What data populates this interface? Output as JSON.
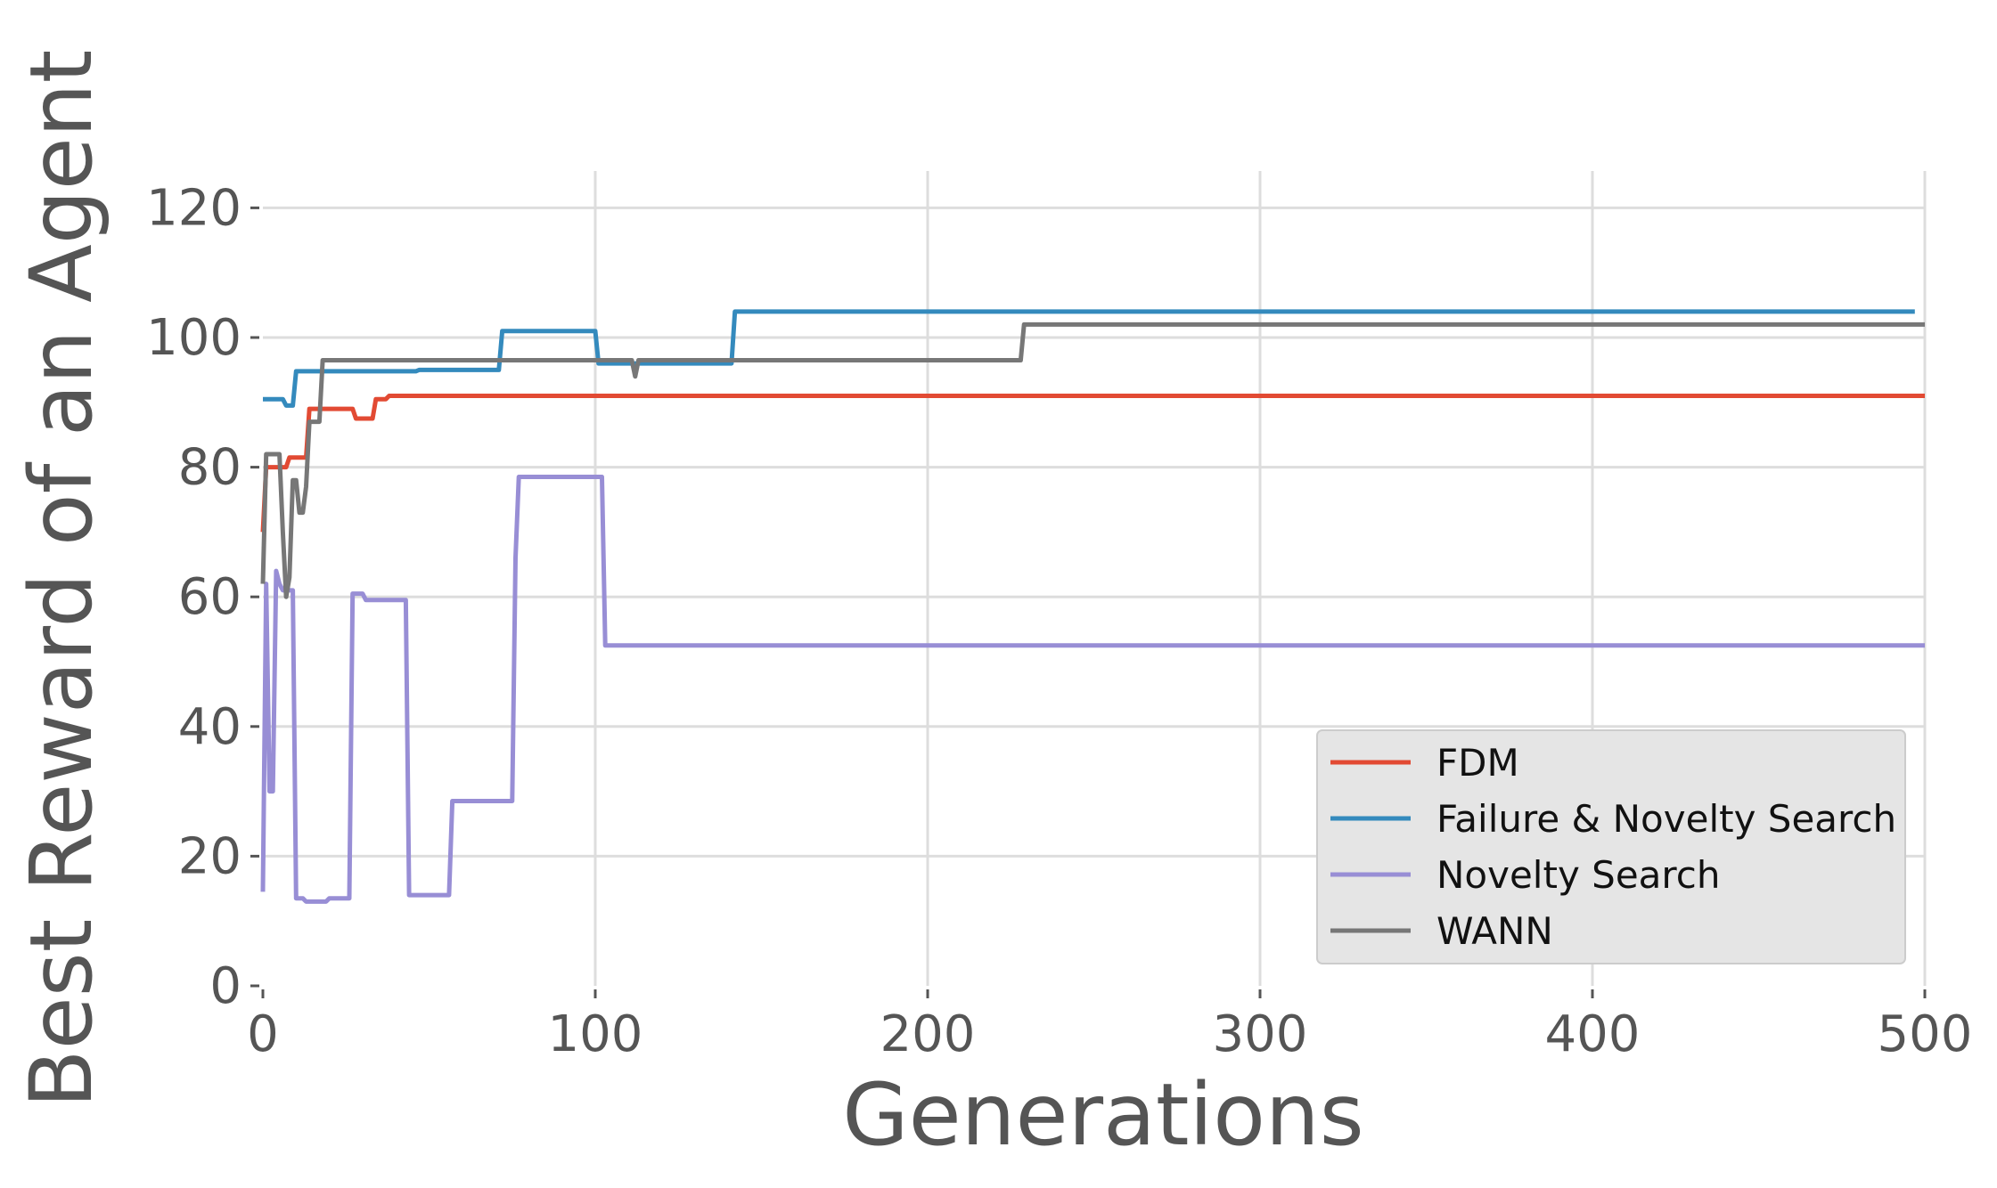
{
  "chart_data": {
    "type": "line",
    "xlabel": "Generations",
    "ylabel": "Best Reward of an Agent",
    "xlim": [
      0,
      500
    ],
    "ylim": [
      0,
      125
    ],
    "xticks": [
      "0",
      "100",
      "200",
      "300",
      "400",
      "500"
    ],
    "yticks": [
      "0",
      "20",
      "40",
      "60",
      "80",
      "100",
      "120"
    ],
    "grid": true,
    "legend_position": "bottom-right",
    "series": [
      {
        "name": "FDM",
        "color": "#E24A33",
        "points": [
          [
            0,
            70
          ],
          [
            1,
            80
          ],
          [
            7,
            80
          ],
          [
            8,
            81.5
          ],
          [
            13,
            81.5
          ],
          [
            14,
            89
          ],
          [
            27,
            89
          ],
          [
            28,
            87.5
          ],
          [
            33,
            87.5
          ],
          [
            34,
            90.5
          ],
          [
            37,
            90.5
          ],
          [
            38,
            91
          ],
          [
            500,
            91
          ]
        ]
      },
      {
        "name": "Failure & Novelty Search",
        "color": "#348ABD",
        "points": [
          [
            0,
            90.5
          ],
          [
            6,
            90.5
          ],
          [
            7,
            89.5
          ],
          [
            9,
            89.5
          ],
          [
            10,
            94.8
          ],
          [
            46,
            94.8
          ],
          [
            47,
            95
          ],
          [
            71,
            95
          ],
          [
            72,
            101
          ],
          [
            100,
            101
          ],
          [
            101,
            96
          ],
          [
            141,
            96
          ],
          [
            142,
            104
          ],
          [
            497,
            104
          ]
        ]
      },
      {
        "name": "Novelty Search",
        "color": "#988ED5",
        "points": [
          [
            0,
            14.5
          ],
          [
            1,
            62
          ],
          [
            2,
            30
          ],
          [
            3,
            30
          ],
          [
            4,
            64
          ],
          [
            5,
            62
          ],
          [
            6,
            61
          ],
          [
            9,
            61
          ],
          [
            10,
            13.5
          ],
          [
            12,
            13.5
          ],
          [
            13,
            13
          ],
          [
            19,
            13
          ],
          [
            20,
            13.5
          ],
          [
            26,
            13.5
          ],
          [
            27,
            60.5
          ],
          [
            30,
            60.5
          ],
          [
            31,
            59.5
          ],
          [
            43,
            59.5
          ],
          [
            44,
            14
          ],
          [
            56,
            14
          ],
          [
            57,
            28.5
          ],
          [
            75,
            28.5
          ],
          [
            76,
            66
          ],
          [
            77,
            78.5
          ],
          [
            102,
            78.5
          ],
          [
            103,
            52.5
          ],
          [
            500,
            52.5
          ]
        ]
      },
      {
        "name": "WANN",
        "color": "#777777",
        "points": [
          [
            0,
            62
          ],
          [
            1,
            82
          ],
          [
            5,
            82
          ],
          [
            6,
            70
          ],
          [
            7,
            60
          ],
          [
            8,
            63
          ],
          [
            9,
            78
          ],
          [
            10,
            78
          ],
          [
            11,
            73
          ],
          [
            12,
            73
          ],
          [
            13,
            77
          ],
          [
            14,
            87
          ],
          [
            17,
            87
          ],
          [
            18,
            96.5
          ],
          [
            111,
            96.5
          ],
          [
            112,
            94
          ],
          [
            113,
            96.5
          ],
          [
            228,
            96.5
          ],
          [
            229,
            102
          ],
          [
            500,
            102
          ]
        ]
      }
    ]
  }
}
